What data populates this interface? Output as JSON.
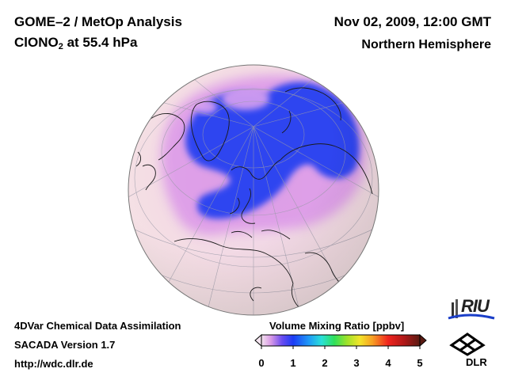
{
  "header": {
    "title_line1": "GOME–2 / MetOp Analysis",
    "species_prefix": "ClONO",
    "species_subscript": "2",
    "species_suffix": " at 55.4 hPa",
    "date": "Nov 02, 2009, 12:00 GMT",
    "region": "Northern Hemisphere"
  },
  "footer": {
    "line1": "4DVar Chemical Data Assimilation",
    "line2": "SACADA Version 1.7",
    "line3": "http://wdc.dlr.de"
  },
  "colorbar": {
    "title": "Volume Mixing Ratio [ppbv]",
    "ticks": [
      "0",
      "1",
      "2",
      "3",
      "4",
      "5"
    ],
    "min": 0,
    "max": 5
  },
  "logos": {
    "riu_text": "RIU",
    "dlr_text": "DLR"
  },
  "colors": {
    "background": "#ffffff",
    "map_low": "#f7e6ea",
    "map_mid": "#e6a0ea",
    "map_high": "#2a3ef2"
  }
}
